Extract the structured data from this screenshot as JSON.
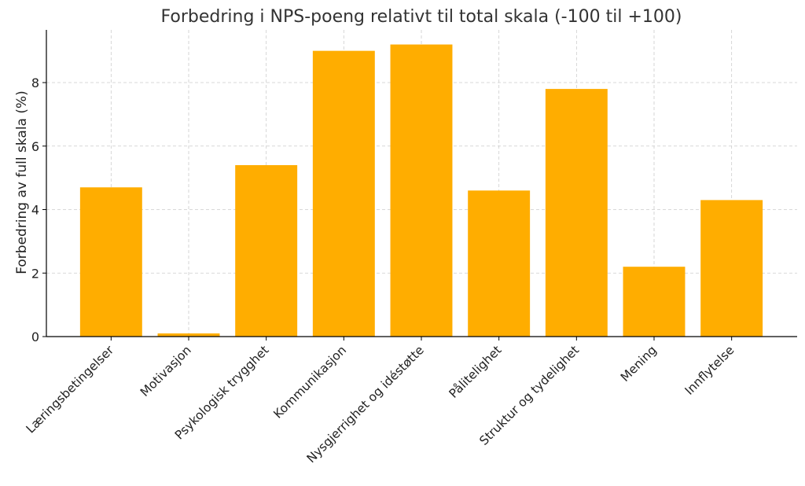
{
  "colors": {
    "bar": "#FFAD00"
  },
  "chart_data": {
    "type": "bar",
    "title": "Forbedring i NPS-poeng relativt til total skala (-100 til +100)",
    "xlabel": "",
    "ylabel": "Forbedring av full skala (%)",
    "categories": [
      "Læringsbetingelser",
      "Motivasjon",
      "Psykologisk trygghet",
      "Kommunikasjon",
      "Nysgjerrighet og idéstøtte",
      "Pålitelighet",
      "Struktur og tydelighet",
      "Mening",
      "Innflytelse"
    ],
    "values": [
      4.7,
      0.1,
      5.4,
      9.0,
      9.2,
      4.6,
      7.8,
      2.2,
      4.3
    ],
    "yticks": [
      0,
      2,
      4,
      6,
      8
    ],
    "ylim": [
      0,
      9.66
    ],
    "grid": true,
    "legend": "none"
  }
}
